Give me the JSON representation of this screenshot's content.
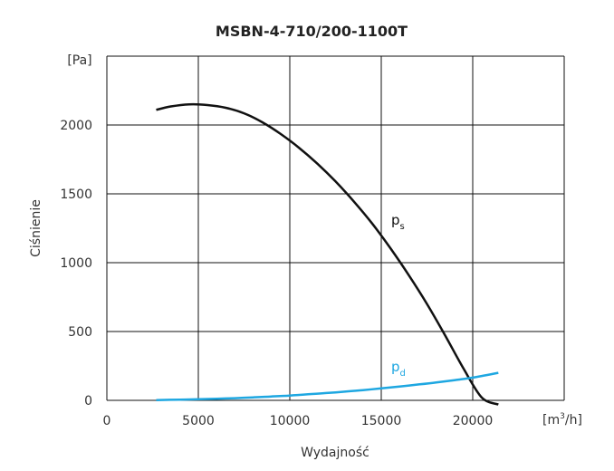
{
  "chart_data": {
    "type": "line",
    "title": "MSBN-4-710/200-1100T",
    "xlabel": "Wydajność",
    "ylabel": "Ciśnienie",
    "x_unit": {
      "base": "[m",
      "sup": "3",
      "tail": "/h]"
    },
    "y_unit": "[Pa]",
    "xlim": [
      0,
      25000
    ],
    "ylim": [
      0,
      2500
    ],
    "x_ticks": [
      0,
      5000,
      10000,
      15000,
      20000
    ],
    "y_ticks": [
      0,
      500,
      1000,
      1500,
      2000
    ],
    "grid": true,
    "series": [
      {
        "name": "ps",
        "label_base": "p",
        "label_sub": "s",
        "color": "#111111",
        "x": [
          2700,
          3500,
          4500,
          5500,
          6500,
          7500,
          8500,
          9500,
          10500,
          11500,
          12500,
          13500,
          14500,
          15500,
          16500,
          17500,
          18500,
          19500,
          20500,
          21400
        ],
        "y": [
          2110,
          2135,
          2150,
          2145,
          2125,
          2085,
          2020,
          1935,
          1835,
          1720,
          1590,
          1445,
          1285,
          1105,
          910,
          700,
          470,
          230,
          20,
          -30
        ]
      },
      {
        "name": "pd",
        "label_base": "p",
        "label_sub": "d",
        "color": "#1ea7e1",
        "x": [
          2700,
          4000,
          5000,
          6000,
          7000,
          8000,
          9000,
          10000,
          11000,
          12000,
          13000,
          14000,
          15000,
          16000,
          17000,
          18000,
          19000,
          20000,
          21400
        ],
        "y": [
          2,
          5,
          8,
          12,
          16,
          22,
          28,
          35,
          44,
          53,
          63,
          74,
          87,
          100,
          115,
          130,
          147,
          165,
          200
        ]
      }
    ]
  }
}
